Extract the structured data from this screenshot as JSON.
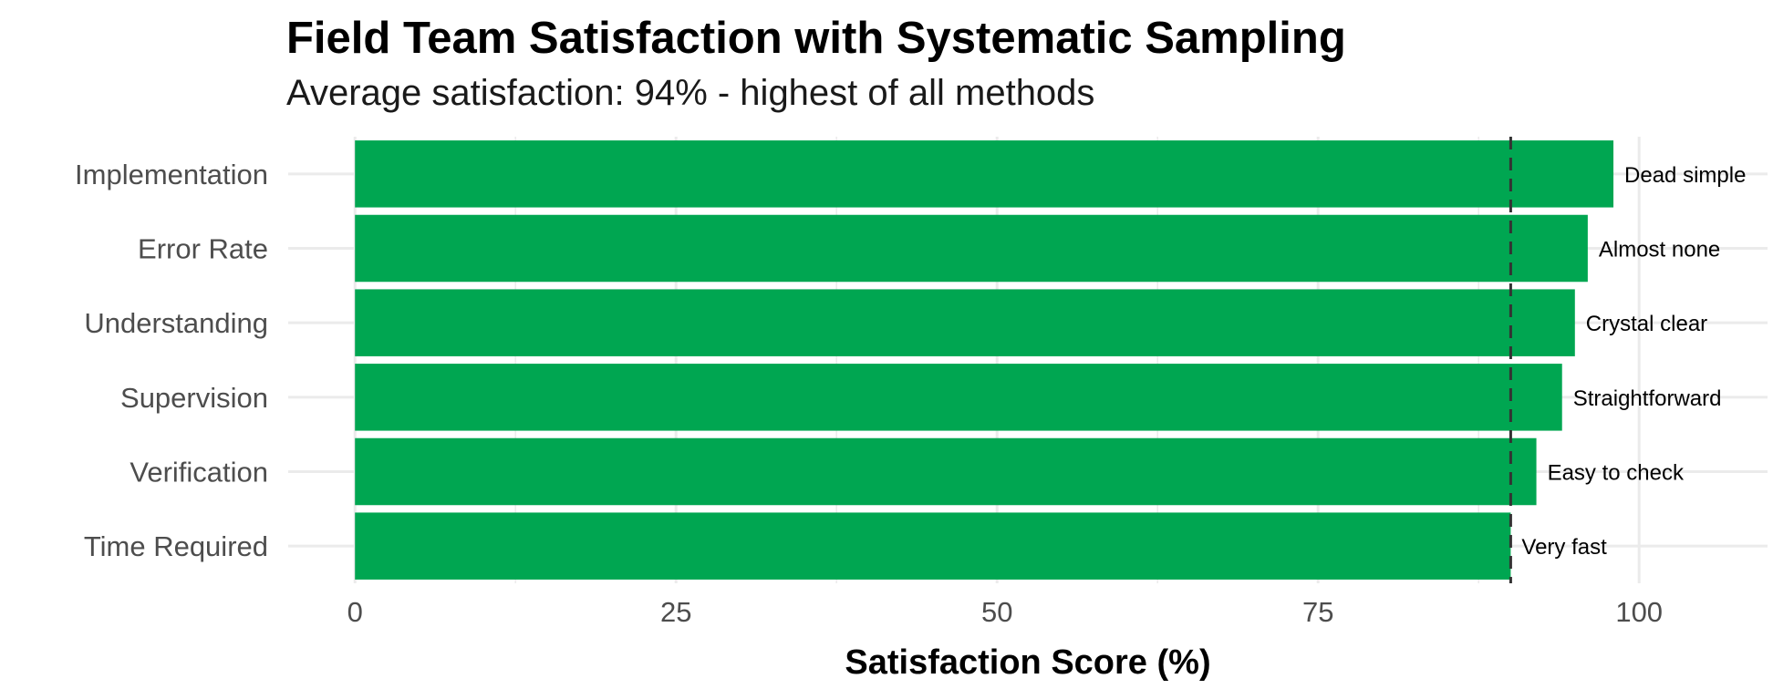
{
  "title": "Field Team Satisfaction with Systematic Sampling",
  "subtitle": "Average satisfaction: 94% - highest of all methods",
  "chart_data": {
    "type": "bar",
    "orientation": "horizontal",
    "title": "Field Team Satisfaction with Systematic Sampling",
    "subtitle": "Average satisfaction: 94% - highest of all methods",
    "xlabel": "Satisfaction Score (%)",
    "ylabel": "",
    "categories": [
      "Implementation",
      "Error Rate",
      "Understanding",
      "Supervision",
      "Verification",
      "Time Required"
    ],
    "values": [
      98,
      96,
      95,
      94,
      92,
      90
    ],
    "data_labels": [
      "Dead simple",
      "Almost none",
      "Crystal clear",
      "Straightforward",
      "Easy to check",
      "Very fast"
    ],
    "xlim": [
      -5.2,
      110
    ],
    "xticks": [
      0,
      25,
      50,
      75,
      100
    ],
    "reference_line": {
      "value": 90,
      "style": "dashed"
    },
    "grid": true,
    "legend": "none",
    "colors": {
      "bar": "#00A651",
      "grid": "#ebebeb",
      "reference": "#333333"
    }
  }
}
